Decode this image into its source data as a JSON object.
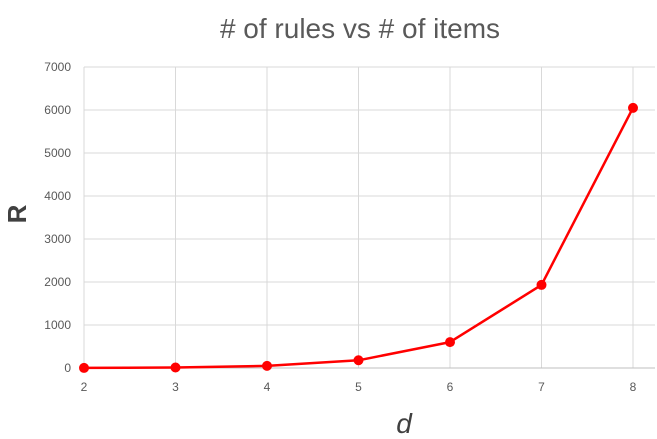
{
  "chart_data": {
    "type": "line",
    "title": "# of rules vs # of items",
    "xlabel": "d",
    "ylabel": "R",
    "x": [
      2,
      3,
      4,
      5,
      6,
      7,
      8
    ],
    "series": [
      {
        "values": [
          2,
          12,
          50,
          180,
          602,
          1932,
          6050
        ]
      }
    ],
    "xlim": [
      2,
      8
    ],
    "ylim": [
      0,
      7000
    ],
    "ytick_step": 1000,
    "grid": true,
    "legend": false,
    "line_color": "#ff0000",
    "marker": "circle"
  }
}
